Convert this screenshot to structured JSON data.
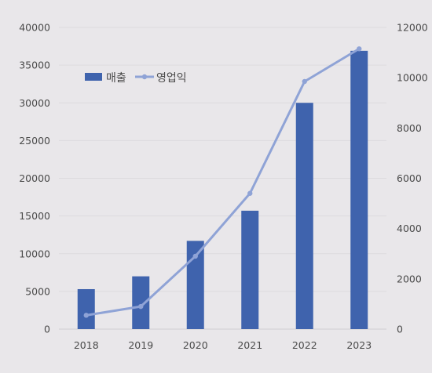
{
  "chart_data": {
    "type": "bar",
    "categories": [
      "2018",
      "2019",
      "2020",
      "2021",
      "2022",
      "2023"
    ],
    "series": [
      {
        "name": "매출",
        "type": "bar",
        "axis": "left",
        "color": "#3f63ad",
        "values": [
          5300,
          7000,
          11700,
          15700,
          30000,
          36900
        ]
      },
      {
        "name": "영업익",
        "type": "line",
        "axis": "right",
        "color": "#8fa3d6",
        "values": [
          550,
          900,
          2900,
          5400,
          9850,
          11150
        ]
      }
    ],
    "ylim_left": [
      0,
      40000
    ],
    "yticks_left": [
      "0",
      "5000",
      "10000",
      "15000",
      "20000",
      "25000",
      "30000",
      "35000",
      "40000"
    ],
    "ylim_right": [
      0,
      12000
    ],
    "yticks_right": [
      "0",
      "2000",
      "4000",
      "6000",
      "8000",
      "10000",
      "12000"
    ],
    "legend_position": "top-left",
    "grid": true
  }
}
